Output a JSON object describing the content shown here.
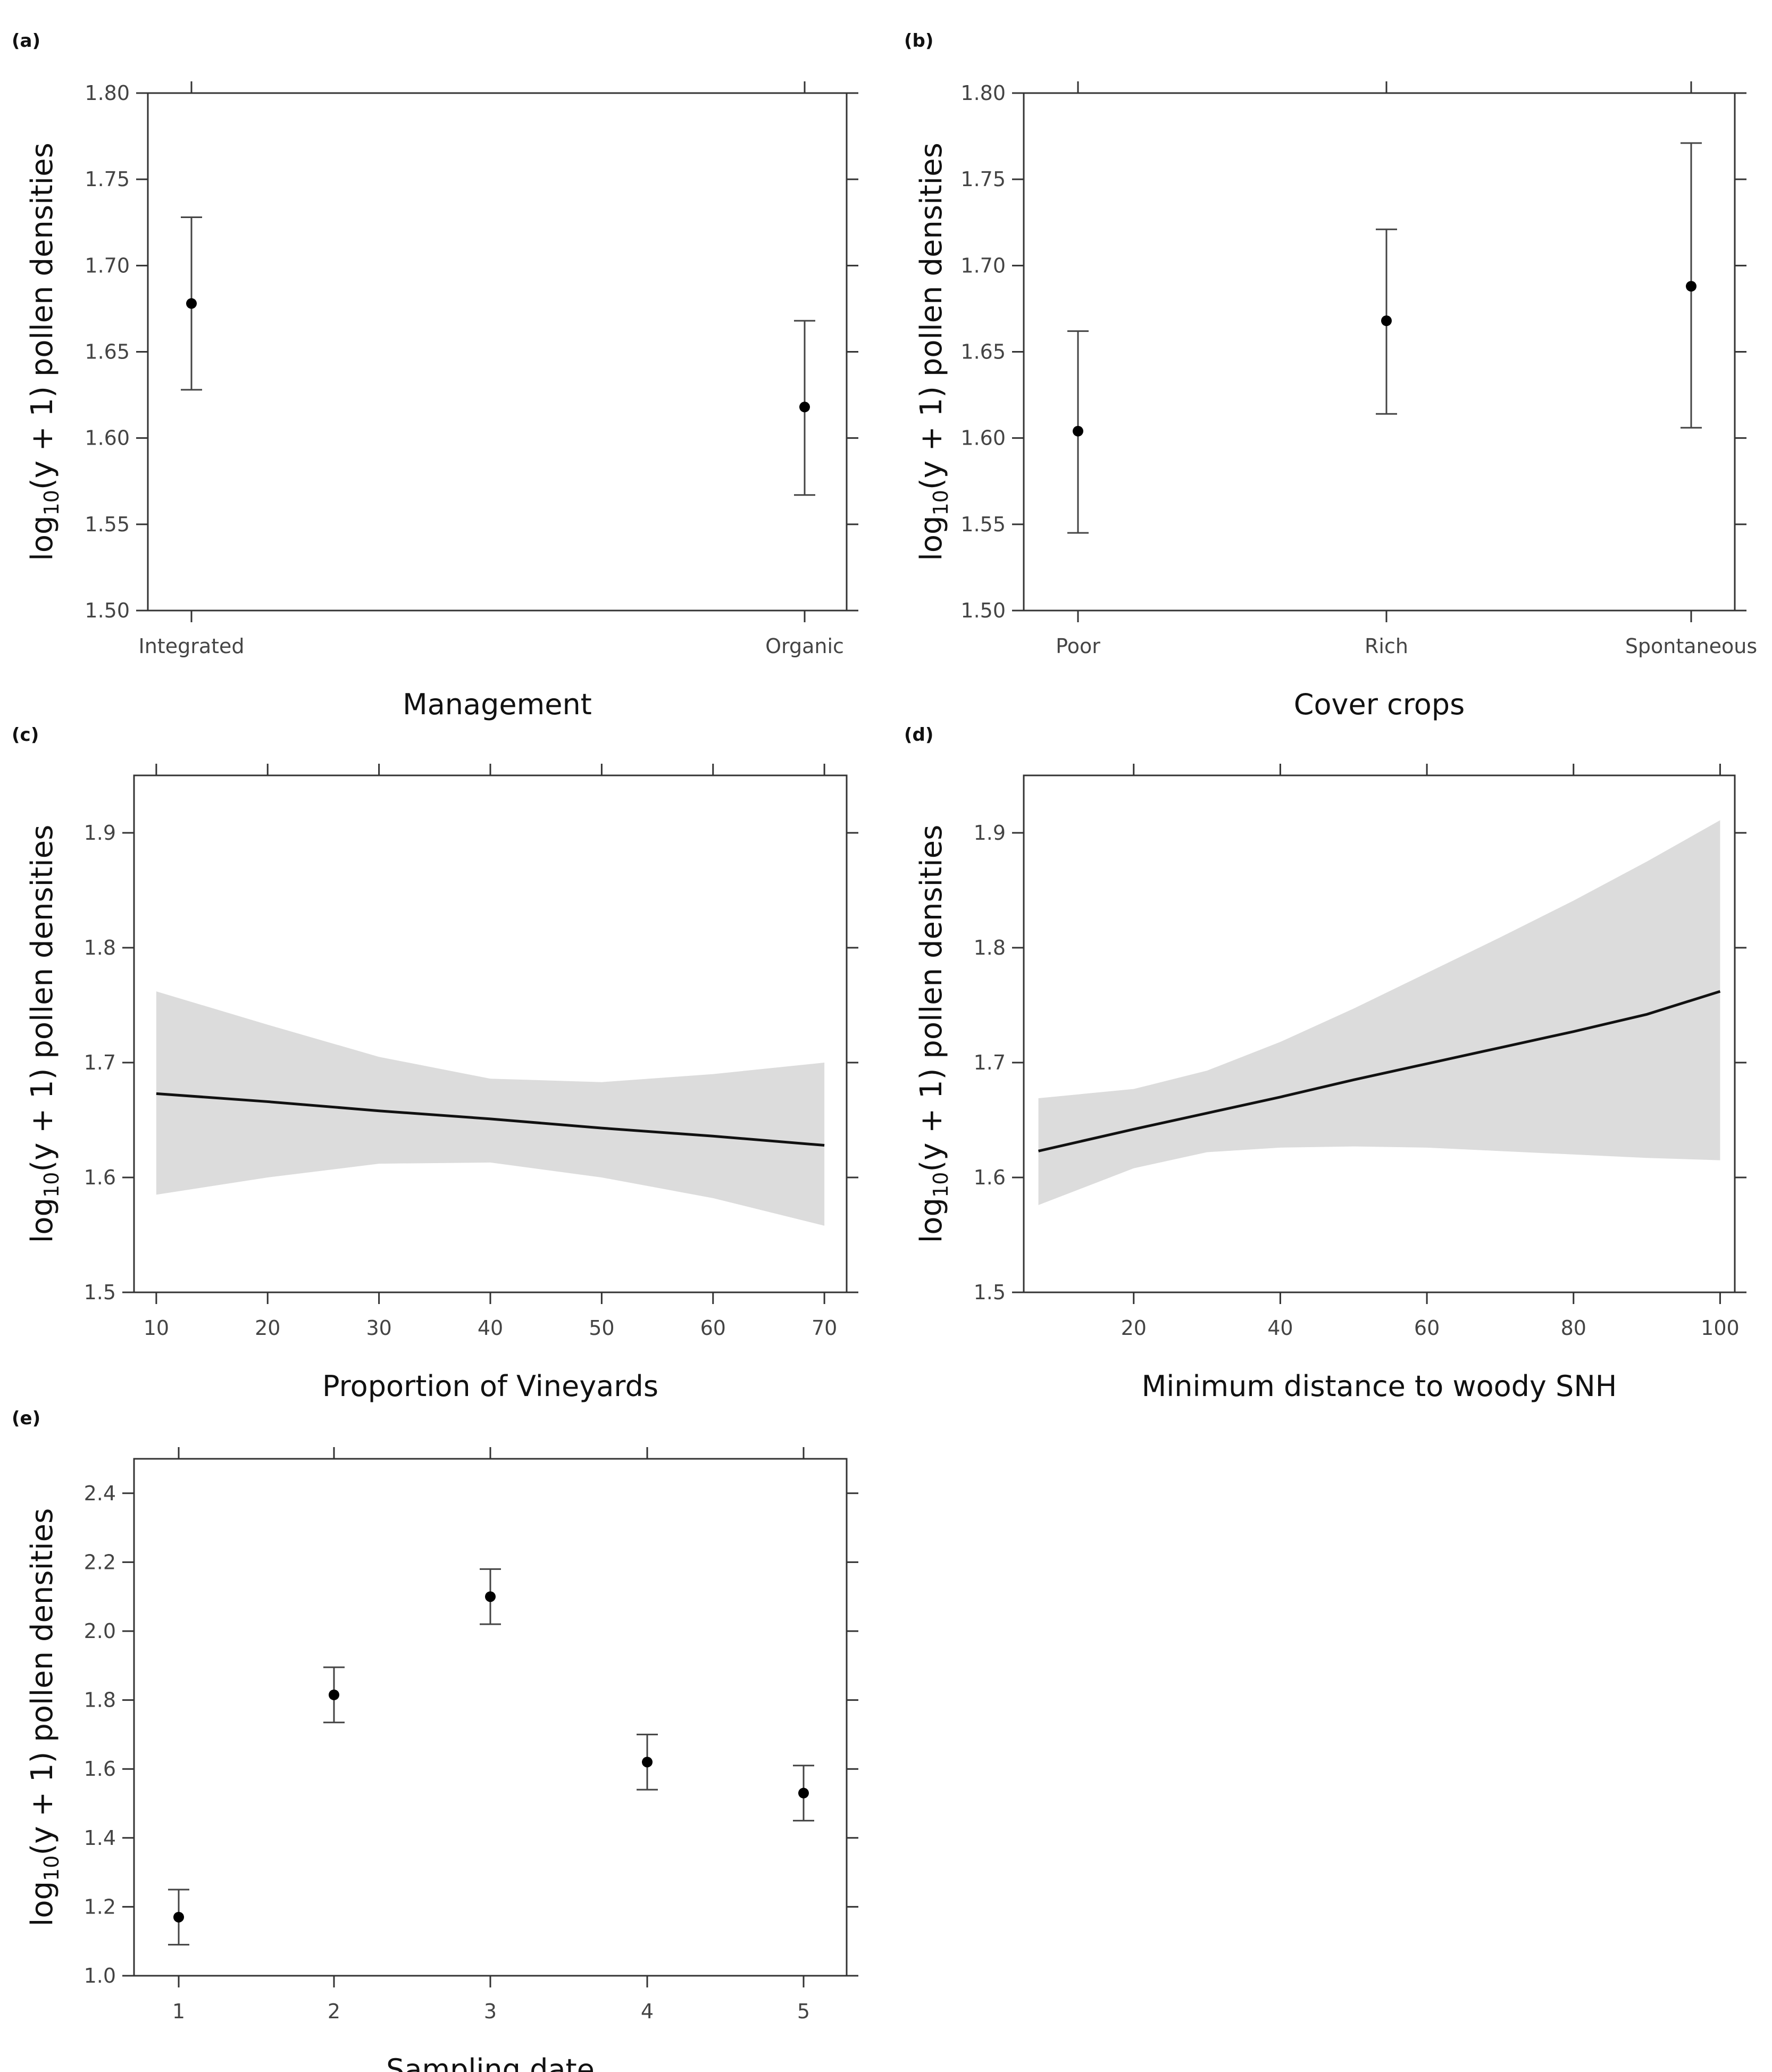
{
  "chart_data": [
    {
      "id": "a",
      "panel_label": "(a)",
      "type": "scatter",
      "subtype": "point-errorbar",
      "categories": [
        "Integrated",
        "Organic"
      ],
      "values": [
        1.678,
        1.618
      ],
      "lower": [
        1.628,
        1.567
      ],
      "upper": [
        1.728,
        1.668
      ],
      "xlabel": "Management",
      "ylabel": {
        "pre": "log",
        "sub": "10",
        "post": "(y + 1) pollen  densities"
      },
      "ylim": [
        1.5,
        1.8
      ],
      "yticks": [
        "1.50",
        "1.55",
        "1.60",
        "1.65",
        "1.70",
        "1.75",
        "1.80"
      ]
    },
    {
      "id": "b",
      "panel_label": "(b)",
      "type": "scatter",
      "subtype": "point-errorbar",
      "categories": [
        "Poor",
        "Rich",
        "Spontaneous"
      ],
      "values": [
        1.604,
        1.668,
        1.688
      ],
      "lower": [
        1.545,
        1.614,
        1.606
      ],
      "upper": [
        1.662,
        1.721,
        1.771
      ],
      "xlabel": "Cover crops",
      "ylabel": {
        "pre": "log",
        "sub": "10",
        "post": "(y + 1) pollen  densities"
      },
      "ylim": [
        1.5,
        1.8
      ],
      "yticks": [
        "1.50",
        "1.55",
        "1.60",
        "1.65",
        "1.70",
        "1.75",
        "1.80"
      ]
    },
    {
      "id": "c",
      "panel_label": "(c)",
      "type": "line",
      "subtype": "line-with-ci",
      "x": [
        10,
        20,
        30,
        40,
        50,
        60,
        70
      ],
      "fit": [
        1.673,
        1.666,
        1.658,
        1.651,
        1.643,
        1.636,
        1.628
      ],
      "lower": [
        1.585,
        1.6,
        1.612,
        1.613,
        1.6,
        1.582,
        1.558
      ],
      "upper": [
        1.762,
        1.733,
        1.705,
        1.686,
        1.683,
        1.69,
        1.7
      ],
      "xlabel": "Proportion of Vineyards",
      "ylabel": {
        "pre": "log",
        "sub": "10",
        "post": "(y + 1) pollen    densities"
      },
      "xlim": [
        8,
        72
      ],
      "ylim": [
        1.5,
        1.95
      ],
      "xticks": [
        "10",
        "20",
        "30",
        "40",
        "50",
        "60",
        "70"
      ],
      "yticks": [
        "1.5",
        "1.6",
        "1.7",
        "1.8",
        "1.9"
      ]
    },
    {
      "id": "d",
      "panel_label": "(d)",
      "type": "line",
      "subtype": "line-with-ci",
      "x": [
        7,
        20,
        30,
        40,
        50,
        60,
        70,
        80,
        90,
        100
      ],
      "fit": [
        1.623,
        1.642,
        1.656,
        1.67,
        1.685,
        1.699,
        1.713,
        1.727,
        1.742,
        1.762
      ],
      "lower": [
        1.576,
        1.608,
        1.622,
        1.626,
        1.627,
        1.626,
        1.623,
        1.62,
        1.617,
        1.615
      ],
      "upper": [
        1.669,
        1.677,
        1.693,
        1.718,
        1.747,
        1.778,
        1.809,
        1.841,
        1.875,
        1.911
      ],
      "xlabel": "Minimum distance to woody SNH",
      "ylabel": {
        "pre": "log",
        "sub": "10",
        "post": "(y + 1) pollen    densities"
      },
      "xlim": [
        5,
        102
      ],
      "ylim": [
        1.5,
        1.95
      ],
      "xticks": [
        "20",
        "40",
        "60",
        "80",
        "100"
      ],
      "yticks": [
        "1.5",
        "1.6",
        "1.7",
        "1.8",
        "1.9"
      ]
    },
    {
      "id": "e",
      "panel_label": "(e)",
      "type": "scatter",
      "subtype": "point-errorbar",
      "categories": [
        "1",
        "2",
        "3",
        "4",
        "5"
      ],
      "values": [
        1.17,
        1.815,
        2.1,
        1.62,
        1.53
      ],
      "lower": [
        1.09,
        1.735,
        2.02,
        1.54,
        1.45
      ],
      "upper": [
        1.25,
        1.895,
        2.18,
        1.7,
        1.61
      ],
      "xlabel": "Sampling date",
      "ylabel": {
        "pre": "log",
        "sub": "10",
        "post": "(y + 1) pollen  densities"
      },
      "ylim": [
        1.0,
        2.5
      ],
      "yticks": [
        "1.0",
        "1.2",
        "1.4",
        "1.6",
        "1.8",
        "2.0",
        "2.2",
        "2.4"
      ]
    }
  ]
}
